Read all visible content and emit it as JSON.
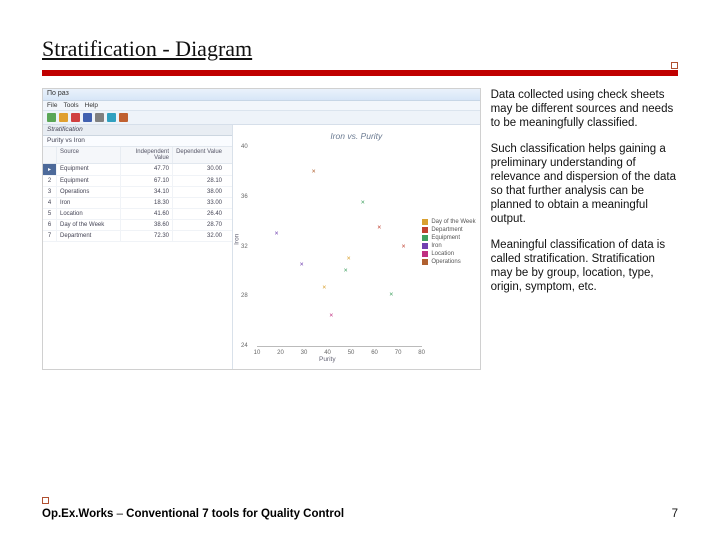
{
  "title": "Stratification - Diagram",
  "paragraphs": {
    "p1": "Data collected using check sheets may be different sources and needs to be meaningfully classified.",
    "p2": "Such classification helps gaining a preliminary understanding of relevance and dispersion of the data so that further analysis can be planned to obtain a meaningful output.",
    "p3": "Meaningful classification of data is called stratification. Stratification may be by group, location, type, origin, symptom, etc."
  },
  "footer": {
    "brand1": "Op.Ex.Works",
    "sep": " – ",
    "brand2": " Conventional 7 tools for Quality Control",
    "page": "7"
  },
  "app": {
    "title": "По раз",
    "menu": [
      "File",
      "Tools",
      "Help"
    ],
    "toolbar_colors": [
      "#5aa657",
      "#e0a030",
      "#d04040",
      "#4060b0",
      "#808080",
      "#30a0c0",
      "#c06030"
    ],
    "left": {
      "hdr": "Stratification",
      "sub": "Purity vs Iron",
      "columns": [
        "",
        "Source",
        "Independent Value",
        "Dependent Value"
      ],
      "rows": [
        {
          "n": "▸",
          "src": "Equipment",
          "iv": "47.70",
          "dv": "30.00"
        },
        {
          "n": "2",
          "src": "Equipment",
          "iv": "67.10",
          "dv": "28.10"
        },
        {
          "n": "3",
          "src": "Operations",
          "iv": "34.10",
          "dv": "38.00"
        },
        {
          "n": "4",
          "src": "Iron",
          "iv": "18.30",
          "dv": "33.00"
        },
        {
          "n": "5",
          "src": "Location",
          "iv": "41.60",
          "dv": "26.40"
        },
        {
          "n": "6",
          "src": "Day of the Week",
          "iv": "38.60",
          "dv": "28.70"
        },
        {
          "n": "7",
          "src": "Department",
          "iv": "72.30",
          "dv": "32.00"
        }
      ]
    },
    "chart": {
      "title": "Iron vs. Purity",
      "xlabel": "Purity",
      "ylabel": "Iron",
      "ylim": [
        24,
        40
      ],
      "yticks": [
        40,
        36,
        32,
        28,
        24
      ],
      "xlim": [
        10,
        80
      ],
      "xticks": [
        10,
        20,
        30,
        40,
        50,
        60,
        70,
        80
      ],
      "series": [
        {
          "label": "Day of the Week",
          "color": "#d9a030",
          "marker": "■"
        },
        {
          "label": "Department",
          "color": "#c04030",
          "marker": "■"
        },
        {
          "label": "Equipment",
          "color": "#40a060",
          "marker": "■"
        },
        {
          "label": "Iron",
          "color": "#7040b0",
          "marker": "■"
        },
        {
          "label": "Location",
          "color": "#c03080",
          "marker": "■"
        },
        {
          "label": "Operations",
          "color": "#b06030",
          "marker": "■"
        }
      ],
      "points": [
        {
          "x": 47.7,
          "y": 30.0,
          "c": "#40a060",
          "m": "×"
        },
        {
          "x": 67.1,
          "y": 28.1,
          "c": "#40a060",
          "m": "×"
        },
        {
          "x": 34.1,
          "y": 38.0,
          "c": "#b06030",
          "m": "×"
        },
        {
          "x": 18.3,
          "y": 33.0,
          "c": "#7040b0",
          "m": "×"
        },
        {
          "x": 41.6,
          "y": 26.4,
          "c": "#c03080",
          "m": "×"
        },
        {
          "x": 38.6,
          "y": 28.7,
          "c": "#d9a030",
          "m": "×"
        },
        {
          "x": 72.3,
          "y": 32.0,
          "c": "#c04030",
          "m": "×"
        },
        {
          "x": 55.0,
          "y": 35.5,
          "c": "#40a060",
          "m": "×"
        },
        {
          "x": 62.0,
          "y": 33.5,
          "c": "#c04030",
          "m": "×"
        },
        {
          "x": 29.0,
          "y": 30.5,
          "c": "#7040b0",
          "m": "×"
        },
        {
          "x": 49.0,
          "y": 31.0,
          "c": "#d9a030",
          "m": "×"
        }
      ]
    }
  }
}
